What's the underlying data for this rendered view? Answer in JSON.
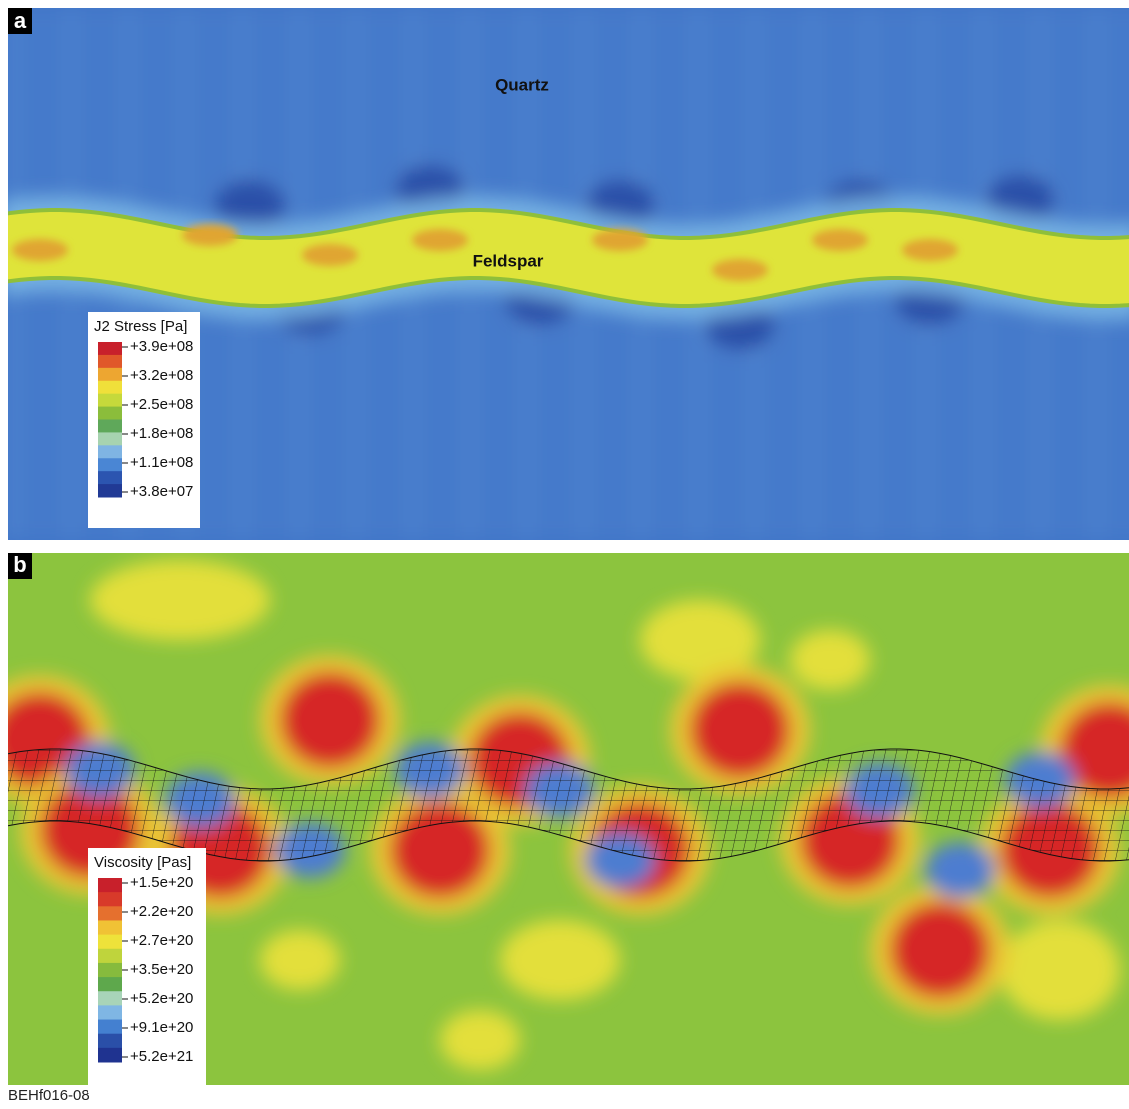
{
  "panels": [
    {
      "label": "a",
      "annotations": [
        "Quartz",
        "Feldspar"
      ],
      "legend": {
        "title": "J2 Stress [Pa]",
        "entries": [
          "+3.9e+08",
          "+3.2e+08",
          "+2.5e+08",
          "+1.8e+08",
          "+1.1e+08",
          "+3.8e+07"
        ]
      }
    },
    {
      "label": "b",
      "legend": {
        "title": "Viscosity [Pas]",
        "entries": [
          "+1.5e+20",
          "+2.2e+20",
          "+2.7e+20",
          "+3.5e+20",
          "+5.2e+20",
          "+9.1e+20",
          "+5.2e+21"
        ]
      }
    }
  ],
  "caption": "BEHf016-08"
}
